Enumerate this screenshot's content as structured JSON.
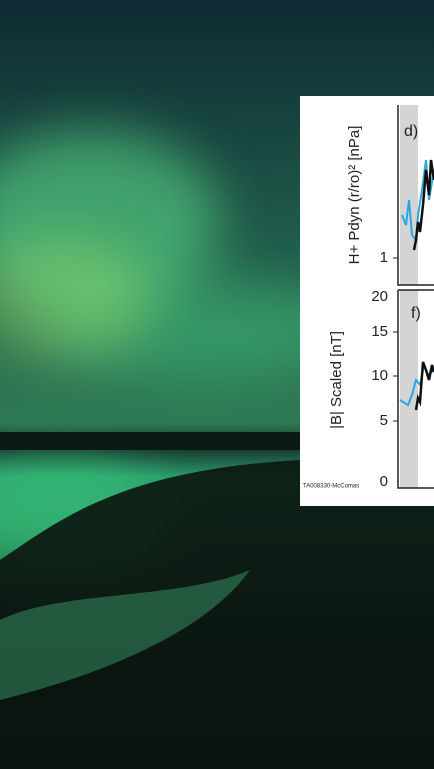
{
  "figure": {
    "panels": [
      {
        "label": "d)",
        "y_label": "H+ Pdyn (r/ro)² [nPa]",
        "tick_labels": [
          1
        ]
      },
      {
        "label": "f)",
        "y_label": "|B| Scaled [nT]",
        "tick_labels": [
          20,
          15,
          10,
          5,
          0
        ]
      }
    ],
    "credit": "TA008330-McComas"
  }
}
